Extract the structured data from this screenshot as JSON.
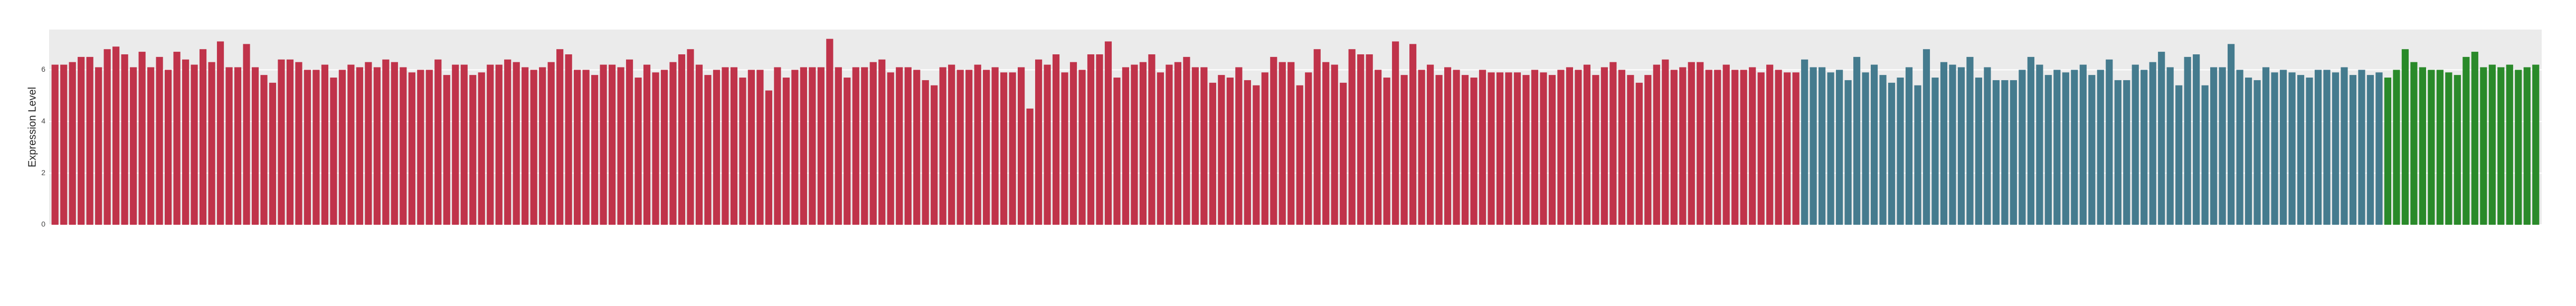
{
  "chart_data": {
    "type": "bar",
    "y_label": "Expression Level",
    "ylim": [
      0,
      7.56
    ],
    "yticks": [
      0,
      2,
      4,
      6
    ],
    "grid": true,
    "series": [
      {
        "color": "#c0334a",
        "values": [
          6.2,
          6.2,
          6.3,
          6.5,
          6.5,
          6.1,
          6.8,
          6.9,
          6.6,
          6.1,
          6.7,
          6.1,
          6.5,
          6.0,
          6.7,
          6.4,
          6.2,
          6.8,
          6.3,
          7.1,
          6.1,
          6.1,
          7.0,
          6.1,
          5.8,
          5.5,
          6.4,
          6.4,
          6.3,
          6.0,
          6.0,
          6.2,
          5.7,
          6.0,
          6.2,
          6.1,
          6.3,
          6.1,
          6.4,
          6.3,
          6.1,
          5.9,
          6.0,
          6.0,
          6.4,
          5.8,
          6.2,
          6.2,
          5.8,
          5.9,
          6.2,
          6.2,
          6.4,
          6.3,
          6.1,
          6.0,
          6.1,
          6.3,
          6.8,
          6.6,
          6.0,
          6.0,
          5.8,
          6.2,
          6.2,
          6.1,
          6.4,
          5.7,
          6.2,
          5.9,
          6.0,
          6.3,
          6.6,
          6.8,
          6.2,
          5.8,
          6.0,
          6.1,
          6.1,
          5.7,
          6.0,
          6.0,
          5.2,
          6.1,
          5.7,
          6.0,
          6.1,
          6.1,
          6.1,
          7.2,
          6.1,
          5.7,
          6.1,
          6.1,
          6.3,
          6.4,
          5.9,
          6.1,
          6.1,
          6.0,
          5.6,
          5.4,
          6.1,
          6.2,
          6.0,
          6.0,
          6.2,
          6.0,
          6.1,
          5.9,
          5.9,
          6.1,
          4.5,
          6.4,
          6.2,
          6.6,
          5.9,
          6.3,
          6.0,
          6.6,
          6.6,
          7.1,
          5.7,
          6.1,
          6.2,
          6.3,
          6.6,
          5.9,
          6.2,
          6.3,
          6.5,
          6.1,
          6.1,
          5.5,
          5.8,
          5.7,
          6.1,
          5.6,
          5.4,
          5.9,
          6.5,
          6.3,
          6.3,
          5.4,
          5.9,
          6.8,
          6.3,
          6.2,
          5.5,
          6.8,
          6.6,
          6.6,
          6.0,
          5.7,
          7.1,
          5.8,
          7.0,
          6.0,
          6.2,
          5.8,
          6.1,
          6.0,
          5.8,
          5.7,
          6.0,
          5.9,
          5.9,
          5.9,
          5.9,
          5.8,
          6.0,
          5.9,
          5.8,
          6.0,
          6.1,
          6.0,
          6.2,
          5.8,
          6.1,
          6.3,
          6.0,
          5.8,
          5.5,
          5.8,
          6.2,
          6.4,
          6.0,
          6.1,
          6.3,
          6.3,
          6.0,
          6.0,
          6.2,
          6.0,
          6.0,
          6.1,
          5.9,
          6.2,
          6.0,
          5.9,
          5.9
        ]
      },
      {
        "color": "#457b8e",
        "values": [
          6.4,
          6.1,
          6.1,
          5.9,
          6.0,
          5.6,
          6.5,
          5.9,
          6.2,
          5.8,
          5.5,
          5.7,
          6.1,
          5.4,
          6.8,
          5.7,
          6.3,
          6.2,
          6.1,
          6.5,
          5.7,
          6.1,
          5.6,
          5.6,
          5.6,
          6.0,
          6.5,
          6.2,
          5.8,
          6.0,
          5.9,
          6.0,
          6.2,
          5.8,
          6.0,
          6.4,
          5.6,
          5.6,
          6.2,
          6.0,
          6.3,
          6.7,
          6.1,
          5.4,
          6.5,
          6.6,
          5.4,
          6.1,
          6.1,
          7.0,
          6.0,
          5.7,
          5.6,
          6.1,
          5.9,
          6.0,
          5.9,
          5.8,
          5.7,
          6.0,
          6.0,
          5.9,
          6.1,
          5.8,
          6.0,
          5.8,
          5.9
        ]
      },
      {
        "color": "#2a8a2a",
        "values": [
          5.7,
          6.0,
          6.8,
          6.3,
          6.1,
          6.0,
          6.0,
          5.9,
          5.8,
          6.5,
          6.7,
          6.1,
          6.2,
          6.1,
          6.2,
          6.0,
          6.1,
          6.2
        ]
      }
    ]
  }
}
